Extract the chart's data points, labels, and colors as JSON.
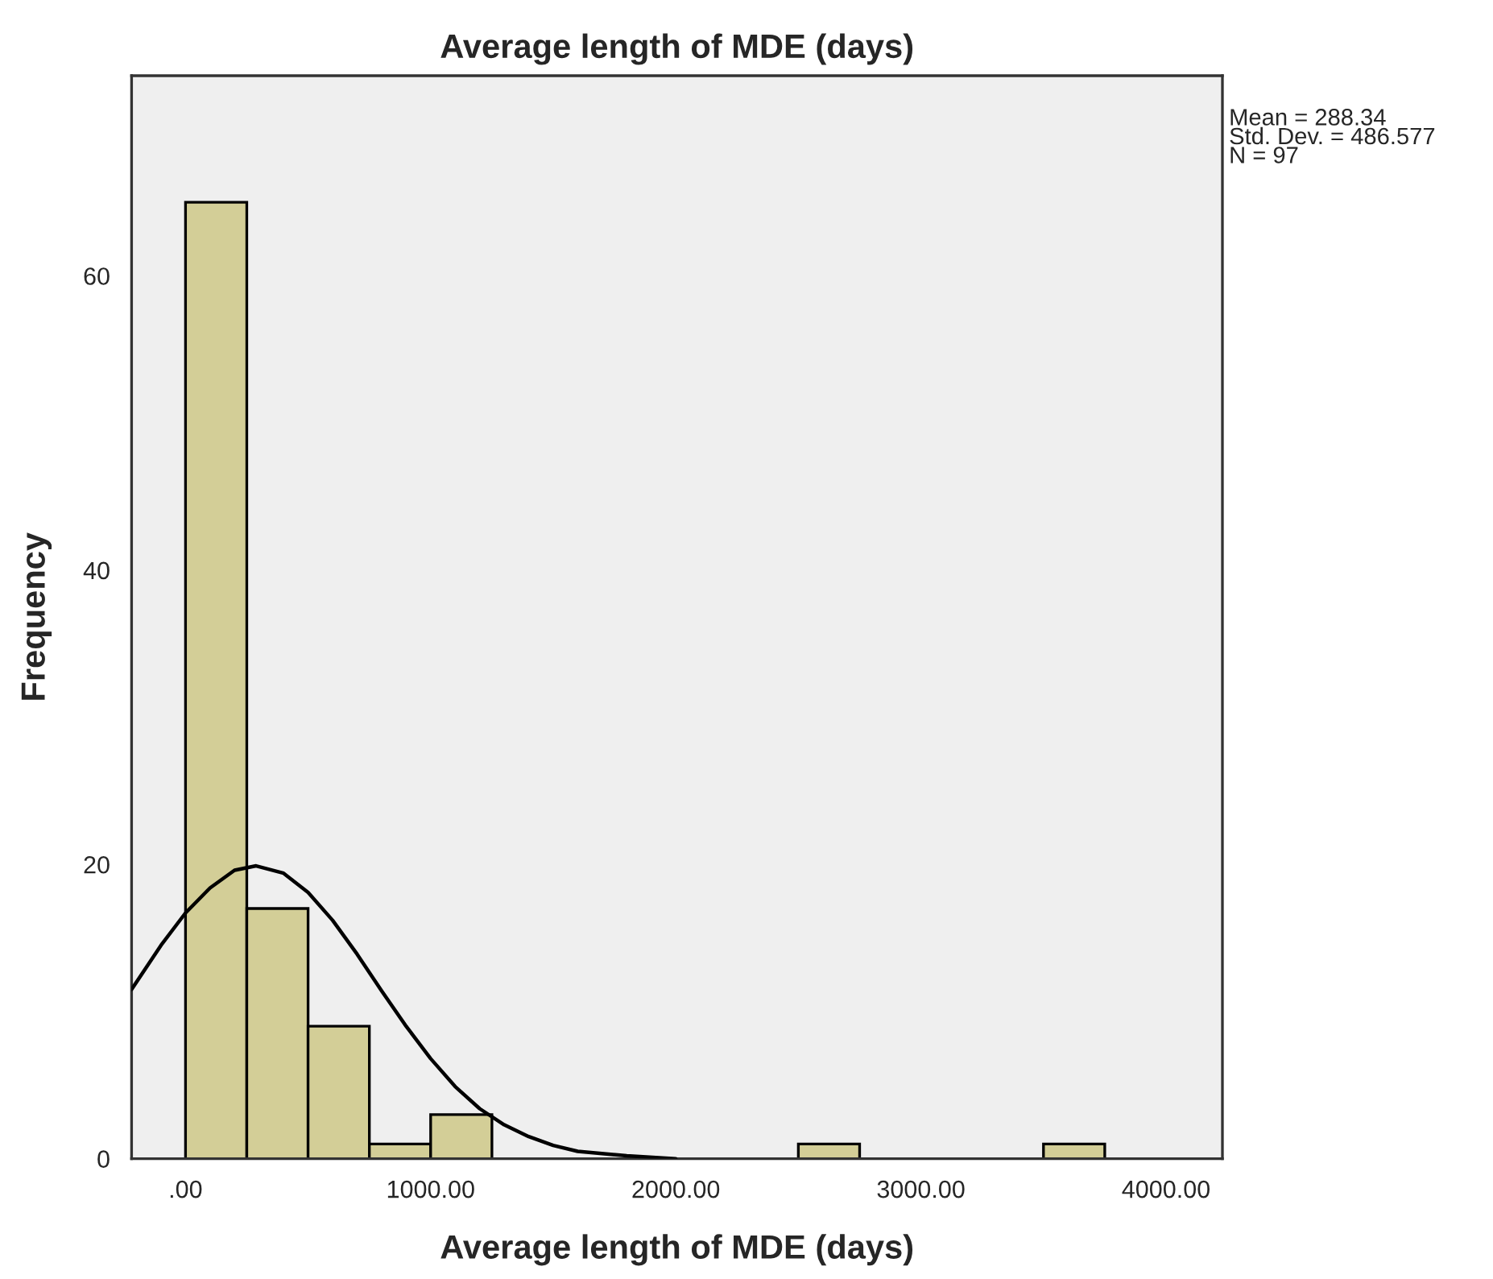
{
  "chart_data": {
    "type": "histogram",
    "title": "Average length of MDE (days)",
    "xlabel": "Average length of MDE (days)",
    "ylabel": "Frequency",
    "bins": [
      0,
      250,
      500,
      750,
      1000,
      1250,
      1500,
      1750,
      2000,
      2250,
      2500,
      2750,
      3000,
      3250,
      3500,
      3750
    ],
    "values": [
      65,
      17,
      9,
      1,
      3,
      0,
      0,
      0,
      0,
      0,
      1,
      0,
      0,
      0,
      1
    ],
    "color": "#d3ce97",
    "series": [
      {
        "type": "line",
        "color": "#000000",
        "x": [
          -220,
          -100,
          0,
          100,
          200,
          288,
          400,
          500,
          600,
          700,
          800,
          900,
          1000,
          1100,
          1200,
          1300,
          1400,
          1500,
          1600,
          1800,
          2000
        ],
        "values": [
          11.5,
          14.5,
          16.7,
          18.4,
          19.6,
          19.9,
          19.4,
          18.1,
          16.2,
          13.9,
          11.4,
          9.0,
          6.8,
          4.9,
          3.4,
          2.3,
          1.5,
          0.9,
          0.5,
          0.2,
          0.0
        ]
      }
    ],
    "xlim": [
      -220,
      4230
    ],
    "ylim": [
      0,
      73.6
    ],
    "xticks": [
      {
        "value": 0,
        "label": ".00"
      },
      {
        "value": 1000,
        "label": "1000.00"
      },
      {
        "value": 2000,
        "label": "2000.00"
      },
      {
        "value": 3000,
        "label": "3000.00"
      },
      {
        "value": 4000,
        "label": "4000.00"
      }
    ],
    "yticks": [
      0,
      20,
      40,
      60
    ],
    "annotations": [
      "Mean = 288.34",
      "Std. Dev. = 486.577",
      "N = 97"
    ]
  }
}
